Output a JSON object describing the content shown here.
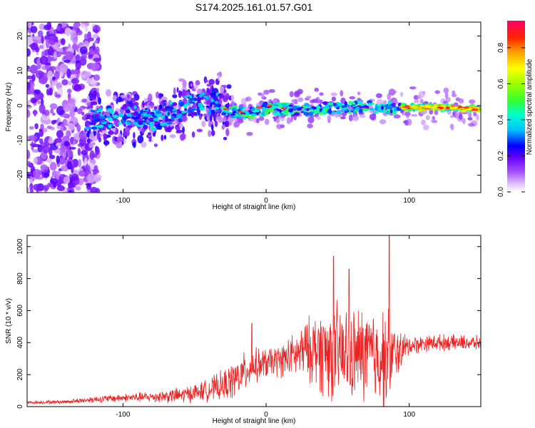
{
  "title": "S174.2025.161.01.57.G01",
  "chart_data": [
    {
      "type": "heatmap",
      "xlabel": "Height of straight line (km)",
      "ylabel": "Frequency (Hz)",
      "xlim": [
        -167,
        150
      ],
      "ylim": [
        -25,
        24
      ],
      "x_ticks": [
        -100,
        0,
        100
      ],
      "y_ticks": [
        -20,
        -10,
        0,
        10,
        20
      ],
      "colorbar": {
        "label": "Normalized spectral amplitude",
        "ticks": [
          "0.0",
          "0.2",
          "0.4",
          "0.6",
          "0.8"
        ],
        "range": [
          0,
          0.95
        ]
      },
      "ridge": {
        "x": [
          -120,
          -100,
          -80,
          -60,
          -45,
          -35,
          -28,
          -20,
          -10,
          0,
          20,
          50,
          80,
          100,
          125,
          150
        ],
        "y": [
          -4,
          -3,
          -4,
          -1,
          1,
          1,
          -1,
          -2,
          -2,
          -1,
          -1,
          -0.5,
          -0.5,
          -0.5,
          -0.5,
          -1
        ]
      }
    },
    {
      "type": "line",
      "xlabel": "Height of straight line (km)",
      "ylabel": "SNR (10 * v/v)",
      "xlim": [
        -167,
        150
      ],
      "ylim": [
        0,
        1070
      ],
      "x_ticks": [
        -100,
        0,
        100
      ],
      "y_ticks": [
        0,
        200,
        400,
        600,
        800,
        1000
      ],
      "color": "#ee2222",
      "envelope": {
        "x": [
          -167,
          -140,
          -120,
          -100,
          -80,
          -60,
          -45,
          -30,
          -20,
          -10,
          0,
          10,
          20,
          30,
          40,
          50,
          60,
          70,
          80,
          85,
          90,
          100,
          110,
          120,
          135,
          150
        ],
        "base": [
          25,
          30,
          45,
          55,
          60,
          70,
          95,
          130,
          180,
          250,
          270,
          290,
          320,
          360,
          350,
          330,
          320,
          330,
          310,
          300,
          330,
          380,
          395,
          400,
          400,
          395
        ],
        "amp": [
          10,
          15,
          25,
          30,
          40,
          60,
          70,
          110,
          150,
          130,
          110,
          120,
          160,
          230,
          330,
          370,
          330,
          360,
          350,
          380,
          200,
          70,
          60,
          60,
          55,
          55
        ]
      },
      "peaks": [
        {
          "x": -10,
          "y": 520
        },
        {
          "x": 47,
          "y": 940
        },
        {
          "x": 58,
          "y": 860
        },
        {
          "x": 86,
          "y": 1070
        }
      ]
    }
  ]
}
